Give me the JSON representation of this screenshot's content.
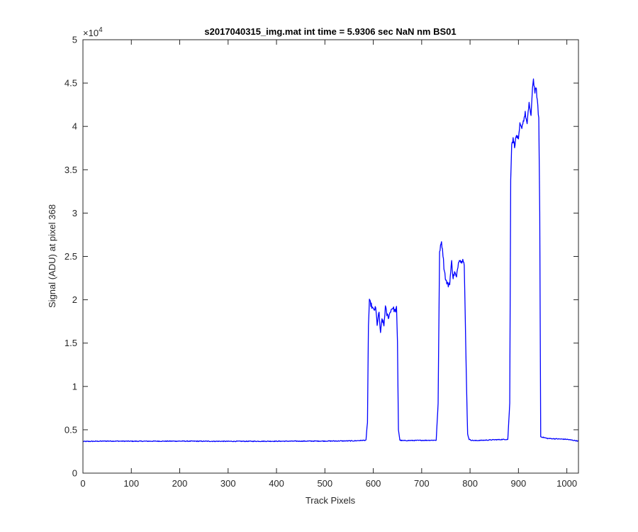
{
  "chart_data": {
    "type": "line",
    "title": "s2017040315_img.mat int time = 5.9306 sec  NaN nm BS01",
    "xlabel": "Track Pixels",
    "ylabel": "Signal (ADU) at pixel 368",
    "xlim": [
      0,
      1024
    ],
    "ylim": [
      0,
      50000
    ],
    "xticks": [
      0,
      100,
      200,
      300,
      400,
      500,
      600,
      700,
      800,
      900,
      1000
    ],
    "yticks": [
      0,
      5000,
      10000,
      15000,
      20000,
      25000,
      30000,
      35000,
      40000,
      45000,
      50000
    ],
    "xtick_labels": [
      "0",
      "100",
      "200",
      "300",
      "400",
      "500",
      "600",
      "700",
      "800",
      "900",
      "1000"
    ],
    "ytick_labels": [
      "0",
      "0.5",
      "1",
      "1.5",
      "2",
      "2.5",
      "3",
      "3.5",
      "4",
      "4.5",
      "5"
    ],
    "y_exponent_label": "×10",
    "y_exponent_power": "4",
    "grid": false,
    "line_color": "#0000ff",
    "series": [
      {
        "x": [
          0,
          50,
          100,
          200,
          300,
          400,
          500,
          560,
          585,
          588,
          590,
          592,
          595,
          600,
          605,
          608,
          612,
          615,
          618,
          622,
          625,
          628,
          632,
          636,
          640,
          645,
          648,
          650,
          652,
          655,
          660,
          700,
          730,
          734,
          737,
          740,
          743,
          746,
          750,
          755,
          758,
          762,
          765,
          768,
          772,
          775,
          778,
          782,
          785,
          788,
          792,
          795,
          798,
          802,
          810,
          850,
          878,
          882,
          884,
          886,
          889,
          892,
          896,
          900,
          903,
          906,
          910,
          914,
          918,
          922,
          926,
          929,
          931,
          934,
          937,
          940,
          942,
          944,
          946,
          960,
          1000,
          1024
        ],
        "y": [
          3650,
          3700,
          3680,
          3690,
          3670,
          3680,
          3700,
          3720,
          3800,
          6000,
          17000,
          19800,
          19500,
          18800,
          19000,
          17200,
          18500,
          16000,
          17800,
          17000,
          19200,
          18300,
          18000,
          18800,
          19100,
          18700,
          19000,
          15000,
          5000,
          3800,
          3750,
          3780,
          3800,
          8000,
          25500,
          26700,
          26000,
          23800,
          22200,
          21700,
          22000,
          24400,
          22500,
          23200,
          22500,
          24000,
          24800,
          24300,
          24900,
          24000,
          12000,
          4500,
          3900,
          3800,
          3750,
          3850,
          3900,
          8000,
          34000,
          38000,
          38500,
          37800,
          39000,
          38300,
          40200,
          39800,
          40600,
          41500,
          40200,
          42800,
          41000,
          44600,
          45400,
          44000,
          44300,
          42200,
          41000,
          30000,
          4200,
          4000,
          3900,
          3700
        ],
        "noise_amplitude": 250
      }
    ]
  }
}
